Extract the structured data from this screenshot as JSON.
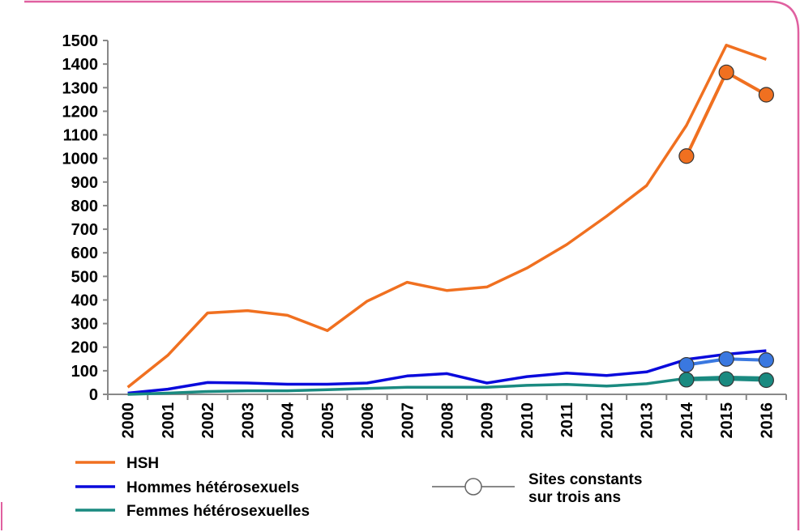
{
  "chart_data": {
    "type": "line",
    "title": "",
    "xlabel": "",
    "ylabel": "",
    "ylim": [
      0,
      1500
    ],
    "yticks": [
      0,
      100,
      200,
      300,
      400,
      500,
      600,
      700,
      800,
      900,
      1000,
      1100,
      1200,
      1300,
      1400,
      1500
    ],
    "x": [
      "2000",
      "2001",
      "2002",
      "2003",
      "2004",
      "2005",
      "2006",
      "2007",
      "2008",
      "2009",
      "2010",
      "2011",
      "2012",
      "2013",
      "2014",
      "2015",
      "2016"
    ],
    "grid": false,
    "legend_position": "bottom",
    "series": [
      {
        "name": "HSH",
        "color": "#f07020",
        "values": [
          30,
          165,
          345,
          355,
          335,
          270,
          395,
          475,
          440,
          455,
          535,
          635,
          755,
          885,
          1140,
          1480,
          1420
        ]
      },
      {
        "name": "Hommes hétérosexuels",
        "color": "#0a0adc",
        "values": [
          5,
          22,
          50,
          48,
          43,
          43,
          48,
          78,
          88,
          48,
          75,
          90,
          80,
          95,
          148,
          170,
          185
        ]
      },
      {
        "name": "Femmes hétérosexuelles",
        "color": "#1a8a80",
        "values": [
          0,
          5,
          12,
          15,
          15,
          20,
          25,
          30,
          30,
          30,
          38,
          42,
          35,
          45,
          68,
          73,
          70
        ]
      }
    ],
    "constant_sites": {
      "label": "Sites constants sur trois ans",
      "label_lines": [
        "Sites constants",
        "sur trois ans"
      ],
      "x": [
        "2014",
        "2015",
        "2016"
      ],
      "series": [
        {
          "ref": "HSH",
          "fill": "#f07020",
          "values": [
            1010,
            1365,
            1270
          ]
        },
        {
          "ref": "Hommes hétérosexuels",
          "fill": "#3a78e0",
          "values": [
            125,
            150,
            145
          ]
        },
        {
          "ref": "Femmes hétérosexuelles",
          "fill": "#1a8a80",
          "values": [
            62,
            65,
            60
          ]
        }
      ]
    }
  }
}
